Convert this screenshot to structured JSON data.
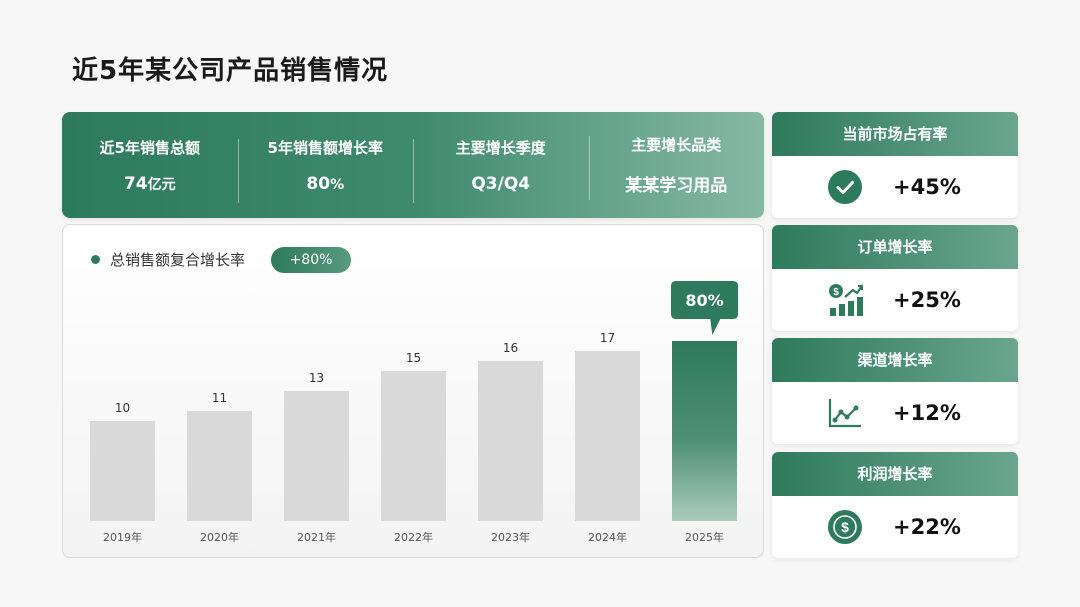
{
  "title": "近5年某公司产品销售情况",
  "kpis": [
    {
      "label": "近5年销售总额",
      "value": "74",
      "unit": "亿元"
    },
    {
      "label": "5年销售额增长率",
      "value": "80",
      "unit": "%"
    },
    {
      "label": "主要增长季度",
      "value": "Q3/Q4",
      "unit": ""
    },
    {
      "label": "主要增长品类",
      "value": "某某学习用品",
      "unit": ""
    }
  ],
  "chart": {
    "legend_label": "总销售额复合增长率",
    "rate_pill": "+80%",
    "callout": "80%"
  },
  "chart_data": {
    "type": "bar",
    "categories": [
      "2019年",
      "2020年",
      "2021年",
      "2022年",
      "2023年",
      "2024年",
      "2025年"
    ],
    "values": [
      10,
      11,
      13,
      15,
      16,
      17,
      null
    ],
    "labels": [
      "10",
      "11",
      "13",
      "15",
      "16",
      "17",
      "80%"
    ],
    "highlight_index": 6,
    "highlight_display_value": 18,
    "ylim": [
      0,
      20
    ],
    "grid": false,
    "colors": {
      "bar": "#d9d9d9",
      "highlight": "#2e7a5c"
    }
  },
  "side_cards": [
    {
      "title": "当前市场占有率",
      "value": "+45%",
      "icon": "check-circle-icon"
    },
    {
      "title": "订单增长率",
      "value": "+25%",
      "icon": "money-growth-chart-icon"
    },
    {
      "title": "渠道增长率",
      "value": "+12%",
      "icon": "line-trend-chart-icon"
    },
    {
      "title": "利润增长率",
      "value": "+22%",
      "icon": "dollar-coin-icon"
    }
  ],
  "colors": {
    "accent": "#2e7a5c",
    "accent_light": "#86b8a5"
  }
}
